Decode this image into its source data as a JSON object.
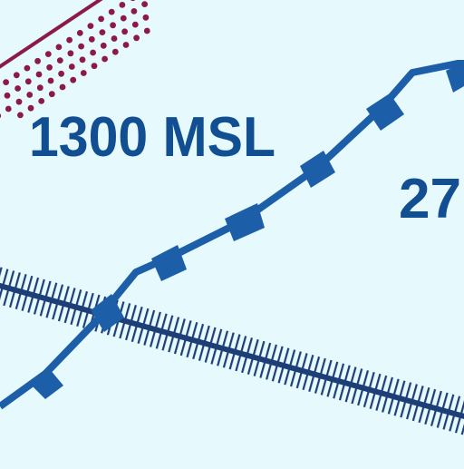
{
  "colors": {
    "background": "#e6f9fc",
    "airspace_blue": "#1c5fa8",
    "label_blue": "#124f92",
    "magenta": "#8b1a4a",
    "railroad": "#1e3e78"
  },
  "labels": {
    "altitude_msl": "1300 MSL",
    "altitude_partial": "27"
  }
}
